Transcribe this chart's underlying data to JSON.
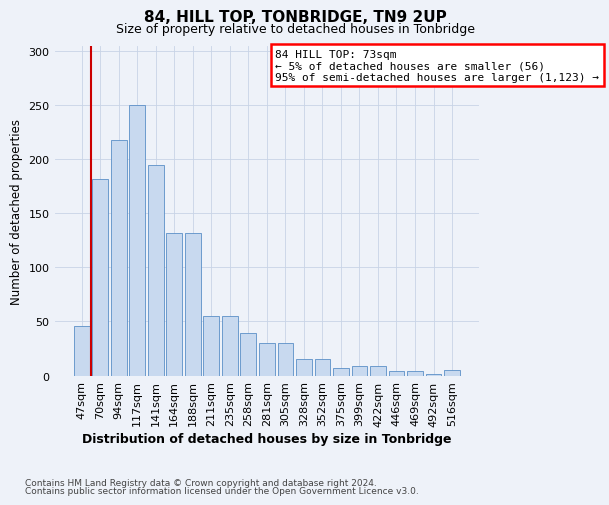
{
  "title": "84, HILL TOP, TONBRIDGE, TN9 2UP",
  "subtitle": "Size of property relative to detached houses in Tonbridge",
  "xlabel": "Distribution of detached houses by size in Tonbridge",
  "ylabel": "Number of detached properties",
  "categories": [
    "47sqm",
    "70sqm",
    "94sqm",
    "117sqm",
    "141sqm",
    "164sqm",
    "188sqm",
    "211sqm",
    "235sqm",
    "258sqm",
    "281sqm",
    "305sqm",
    "328sqm",
    "352sqm",
    "375sqm",
    "399sqm",
    "422sqm",
    "446sqm",
    "469sqm",
    "492sqm",
    "516sqm"
  ],
  "values": [
    46,
    182,
    218,
    250,
    195,
    132,
    132,
    55,
    55,
    39,
    30,
    30,
    15,
    15,
    7,
    9,
    9,
    4,
    4,
    1,
    5
  ],
  "bar_color": "#c8d9ef",
  "bar_edge_color": "#5b8fc7",
  "annotation_line1": "84 HILL TOP: 73sqm",
  "annotation_line2": "← 5% of detached houses are smaller (56)",
  "annotation_line3": "95% of semi-detached houses are larger (1,123) →",
  "vline_color": "#cc0000",
  "vline_x": 0.5,
  "ylim_max": 305,
  "yticks": [
    0,
    50,
    100,
    150,
    200,
    250,
    300
  ],
  "footer1": "Contains HM Land Registry data © Crown copyright and database right 2024.",
  "footer2": "Contains public sector information licensed under the Open Government Licence v3.0.",
  "bg_color": "#eef2f9",
  "grid_color": "#c8d4e6"
}
